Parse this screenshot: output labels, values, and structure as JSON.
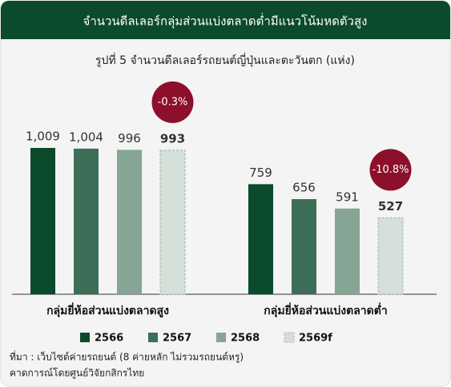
{
  "header": {
    "title": "จำนวนดีลเลอร์กลุ่มส่วนแบ่งตลาดต่ำมีแนวโน้มหดตัวสูง"
  },
  "chart_data": {
    "type": "bar",
    "title": "รูปที่ 5 จำนวนดีลเลอร์รถยนต์ญี่ปุ่นและตะวันตก (แห่ง)",
    "categories": [
      "กลุ่มยี่ห้อส่วนแบ่งตลาดสูง",
      "กลุ่มยี่ห้อส่วนแบ่งตลาดต่ำ"
    ],
    "series": [
      {
        "name": "2566",
        "color": "#0b4a2a",
        "values": [
          1009,
          759
        ],
        "value_labels": [
          "1,009",
          "759"
        ]
      },
      {
        "name": "2567",
        "color": "#3d6e57",
        "values": [
          1004,
          656
        ],
        "value_labels": [
          "1,004",
          "656"
        ]
      },
      {
        "name": "2568",
        "color": "#86a595",
        "values": [
          996,
          591
        ]
      },
      {
        "name": "2569f",
        "color": "#d5dfd9",
        "values": [
          993,
          527
        ],
        "dashed": true
      }
    ],
    "annotations": [
      "-0.3%",
      "-10.8%"
    ]
  },
  "footer": {
    "source": "ที่มา : เว็บไซต์ค่ายรถยนต์ (8 ค่ายหลัก ไม่รวมรถยนต์หรู)",
    "note": "คาดการณ์โดยศูนย์วิจัยกสิกรไทย"
  }
}
